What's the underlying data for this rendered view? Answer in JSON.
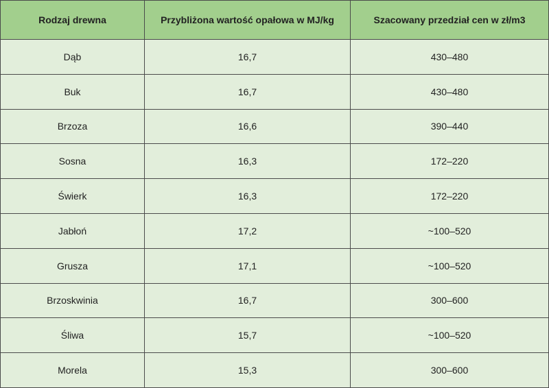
{
  "table": {
    "header": [
      "Rodzaj drewna",
      "Przybliżona wartość opałowa w MJ/kg",
      "Szacowany przedział cen w zł/m3"
    ],
    "rows": [
      [
        "Dąb",
        "16,7",
        "430–480"
      ],
      [
        "Buk",
        "16,7",
        "430–480"
      ],
      [
        "Brzoza",
        "16,6",
        "390–440"
      ],
      [
        "Sosna",
        "16,3",
        "172–220"
      ],
      [
        "Świerk",
        "16,3",
        "172–220"
      ],
      [
        "Jabłoń",
        "17,2",
        "~100–520"
      ],
      [
        "Grusza",
        "17,1",
        "~100–520"
      ],
      [
        "Brzoskwinia",
        "16,7",
        "300–600"
      ],
      [
        "Śliwa",
        "15,7",
        "~100–520"
      ],
      [
        "Morela",
        "15,3",
        "300–600"
      ]
    ]
  }
}
